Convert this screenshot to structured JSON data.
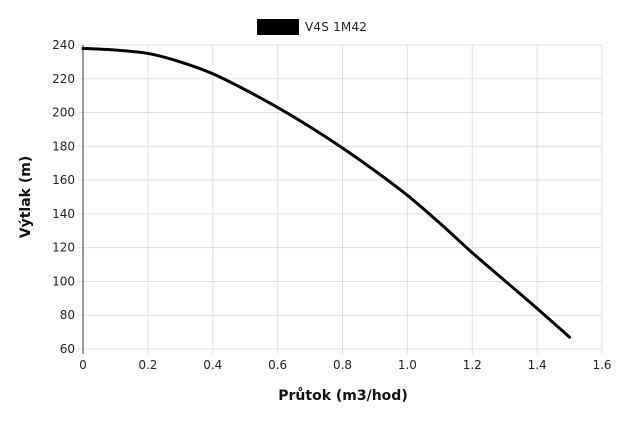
{
  "chart_data": {
    "type": "line",
    "title": "",
    "xlabel": "Průtok (m3/hod)",
    "ylabel": "Výtlak (m)",
    "xlim": [
      0,
      1.6
    ],
    "ylim": [
      60,
      240
    ],
    "grid": true,
    "legend_position": "top-center",
    "x_ticks": [
      "0",
      "0.2",
      "0.4",
      "0.6",
      "0.8",
      "1.0",
      "1.2",
      "1.4",
      "1.6"
    ],
    "y_ticks": [
      "60",
      "80",
      "100",
      "120",
      "140",
      "160",
      "180",
      "200",
      "220",
      "240"
    ],
    "series": [
      {
        "name": "V4S 1M42",
        "color": "#000000",
        "x": [
          0,
          0.1,
          0.2,
          0.3,
          0.4,
          0.5,
          0.6,
          0.7,
          0.8,
          0.9,
          1.0,
          1.1,
          1.2,
          1.3,
          1.4,
          1.5
        ],
        "values": [
          238,
          237,
          235,
          230,
          223,
          213.5,
          203,
          191.5,
          179,
          165.5,
          151,
          134.5,
          117,
          100.5,
          84,
          67
        ]
      }
    ]
  },
  "legend": {
    "items": [
      {
        "label": "V4S 1M42",
        "color": "#000000"
      }
    ]
  },
  "axes": {
    "x_title": "Průtok (m3/hod)",
    "y_title": "Výtlak (m)"
  },
  "colors": {
    "grid": "#e0e0e0",
    "axis": "#999999",
    "line": "#000000"
  }
}
